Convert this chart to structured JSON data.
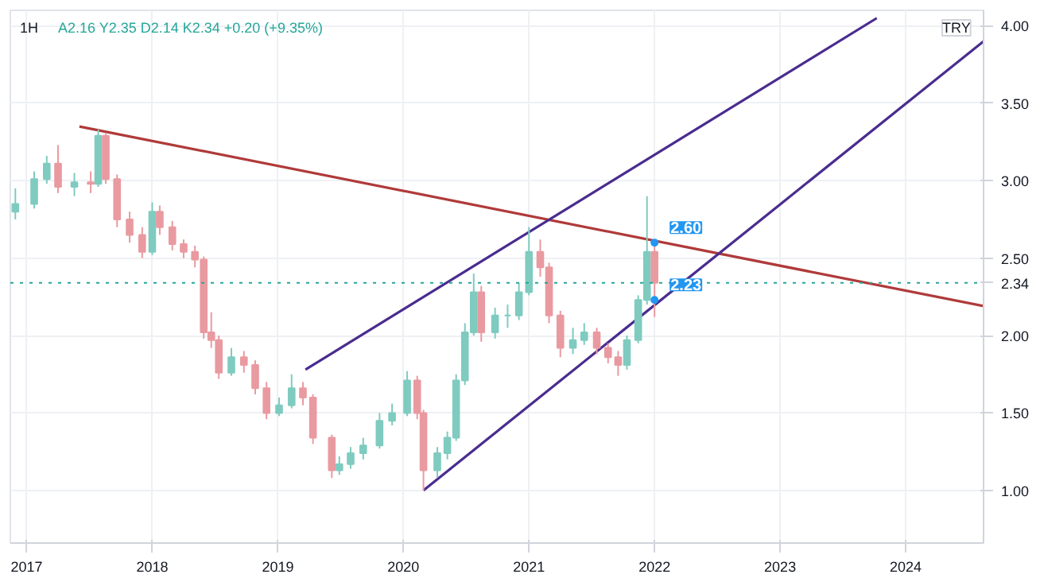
{
  "chart_data": {
    "type": "candlestick",
    "title": "1H",
    "x": [
      2016.91,
      2017.06,
      2017.16,
      2017.25,
      2017.38,
      2017.51,
      2017.57,
      2017.63,
      2017.72,
      2017.82,
      2017.92,
      2018.0,
      2018.06,
      2018.16,
      2018.25,
      2018.34,
      2018.41,
      2018.47,
      2018.53,
      2018.63,
      2018.73,
      2018.82,
      2018.91,
      2019.01,
      2019.11,
      2019.2,
      2019.28,
      2019.43,
      2019.49,
      2019.58,
      2019.68,
      2019.81,
      2019.91,
      2020.03,
      2020.11,
      2020.16,
      2020.27,
      2020.35,
      2020.42,
      2020.49,
      2020.56,
      2020.62,
      2020.73,
      2020.83,
      2020.92,
      2021.0,
      2021.09,
      2021.16,
      2021.25,
      2021.35,
      2021.44,
      2021.54,
      2021.63,
      2021.71,
      2021.78,
      2021.87,
      2021.94,
      2022.0
    ],
    "ohlc": [
      [
        2.8,
        2.95,
        2.75,
        2.85
      ],
      [
        2.85,
        3.06,
        2.82,
        3.01
      ],
      [
        3.01,
        3.16,
        2.98,
        3.11
      ],
      [
        3.11,
        3.23,
        2.92,
        2.96
      ],
      [
        2.96,
        3.05,
        2.9,
        2.99
      ],
      [
        2.99,
        3.06,
        2.92,
        2.98
      ],
      [
        2.98,
        3.33,
        2.96,
        3.29
      ],
      [
        3.29,
        3.31,
        2.98,
        3.01
      ],
      [
        3.01,
        3.04,
        2.7,
        2.75
      ],
      [
        2.75,
        2.8,
        2.6,
        2.65
      ],
      [
        2.65,
        2.7,
        2.5,
        2.54
      ],
      [
        2.54,
        2.86,
        2.52,
        2.8
      ],
      [
        2.8,
        2.84,
        2.65,
        2.7
      ],
      [
        2.7,
        2.74,
        2.55,
        2.59
      ],
      [
        2.59,
        2.62,
        2.5,
        2.54
      ],
      [
        2.54,
        2.58,
        2.44,
        2.49
      ],
      [
        2.49,
        2.51,
        1.98,
        2.02
      ],
      [
        2.02,
        2.15,
        1.92,
        1.97
      ],
      [
        1.97,
        2.0,
        1.72,
        1.76
      ],
      [
        1.76,
        1.92,
        1.74,
        1.86
      ],
      [
        1.86,
        1.9,
        1.76,
        1.81
      ],
      [
        1.81,
        1.84,
        1.62,
        1.66
      ],
      [
        1.66,
        1.7,
        1.46,
        1.5
      ],
      [
        1.5,
        1.6,
        1.48,
        1.55
      ],
      [
        1.55,
        1.75,
        1.53,
        1.66
      ],
      [
        1.66,
        1.7,
        1.55,
        1.6
      ],
      [
        1.6,
        1.62,
        1.3,
        1.34
      ],
      [
        1.34,
        1.36,
        1.08,
        1.13
      ],
      [
        1.13,
        1.22,
        1.1,
        1.17
      ],
      [
        1.17,
        1.28,
        1.14,
        1.24
      ],
      [
        1.24,
        1.34,
        1.2,
        1.29
      ],
      [
        1.29,
        1.5,
        1.27,
        1.45
      ],
      [
        1.45,
        1.56,
        1.42,
        1.5
      ],
      [
        1.5,
        1.77,
        1.48,
        1.71
      ],
      [
        1.71,
        1.74,
        1.46,
        1.5
      ],
      [
        1.5,
        1.52,
        1.0,
        1.13
      ],
      [
        1.13,
        1.28,
        1.08,
        1.24
      ],
      [
        1.24,
        1.38,
        1.2,
        1.34
      ],
      [
        1.34,
        1.75,
        1.32,
        1.71
      ],
      [
        1.71,
        2.08,
        1.68,
        2.02
      ],
      [
        2.02,
        2.4,
        2.0,
        2.28
      ],
      [
        2.28,
        2.32,
        1.96,
        2.02
      ],
      [
        2.02,
        2.18,
        1.98,
        2.13
      ],
      [
        2.13,
        2.2,
        2.05,
        2.13
      ],
      [
        2.13,
        2.34,
        2.1,
        2.28
      ],
      [
        2.28,
        2.7,
        2.26,
        2.54
      ],
      [
        2.54,
        2.62,
        2.38,
        2.44
      ],
      [
        2.44,
        2.47,
        2.08,
        2.13
      ],
      [
        2.13,
        2.16,
        1.86,
        1.92
      ],
      [
        1.92,
        2.05,
        1.88,
        1.97
      ],
      [
        1.97,
        2.08,
        1.94,
        2.02
      ],
      [
        2.02,
        2.05,
        1.88,
        1.92
      ],
      [
        1.92,
        1.95,
        1.82,
        1.86
      ],
      [
        1.86,
        1.9,
        1.74,
        1.81
      ],
      [
        1.81,
        2.0,
        1.78,
        1.97
      ],
      [
        1.97,
        2.26,
        1.95,
        2.23
      ],
      [
        2.23,
        2.9,
        2.2,
        2.54
      ],
      [
        2.54,
        2.6,
        2.12,
        2.34
      ]
    ],
    "series": [
      {
        "type": "line",
        "color": "#b03a3a",
        "x": [
          2017.42,
          2024.62
        ],
        "values": [
          3.35,
          2.19
        ]
      },
      {
        "type": "line",
        "color": "#4a2c8f",
        "x": [
          2019.22,
          2023.77
        ],
        "values": [
          1.78,
          4.05
        ]
      },
      {
        "type": "line",
        "color": "#4a2c8f",
        "x": [
          2020.16,
          2024.62
        ],
        "values": [
          1.0,
          3.9
        ]
      }
    ],
    "ref_lines": [
      {
        "axis": "y",
        "value": 2.34,
        "label": "2.34",
        "color": "#26a69a",
        "line_style": "dotted"
      }
    ],
    "annotations": [
      {
        "text": "2.60",
        "x": 2022.0,
        "y": 2.6
      },
      {
        "text": "2.23",
        "x": 2022.0,
        "y": 2.23
      },
      "A2.16 Y2.35 D2.14 K2.34 +0.20 (+9.35%)",
      "TRY"
    ],
    "xlim": [
      2016.87,
      2024.62
    ],
    "ylim": [
      0.66,
      4.1
    ],
    "xticks": [
      2017,
      2018,
      2019,
      2020,
      2021,
      2022,
      2023,
      2024
    ],
    "yticks": [
      {
        "value": 1.0,
        "label": "1.00"
      },
      {
        "value": 1.5,
        "label": "1.50"
      },
      {
        "value": 2.0,
        "label": "2.00"
      },
      {
        "value": 2.5,
        "label": "2.50"
      },
      {
        "value": 3.0,
        "label": "3.00"
      },
      {
        "value": 3.5,
        "label": "3.50"
      },
      {
        "value": 4.0,
        "label": "4.00"
      }
    ],
    "grid": true
  }
}
